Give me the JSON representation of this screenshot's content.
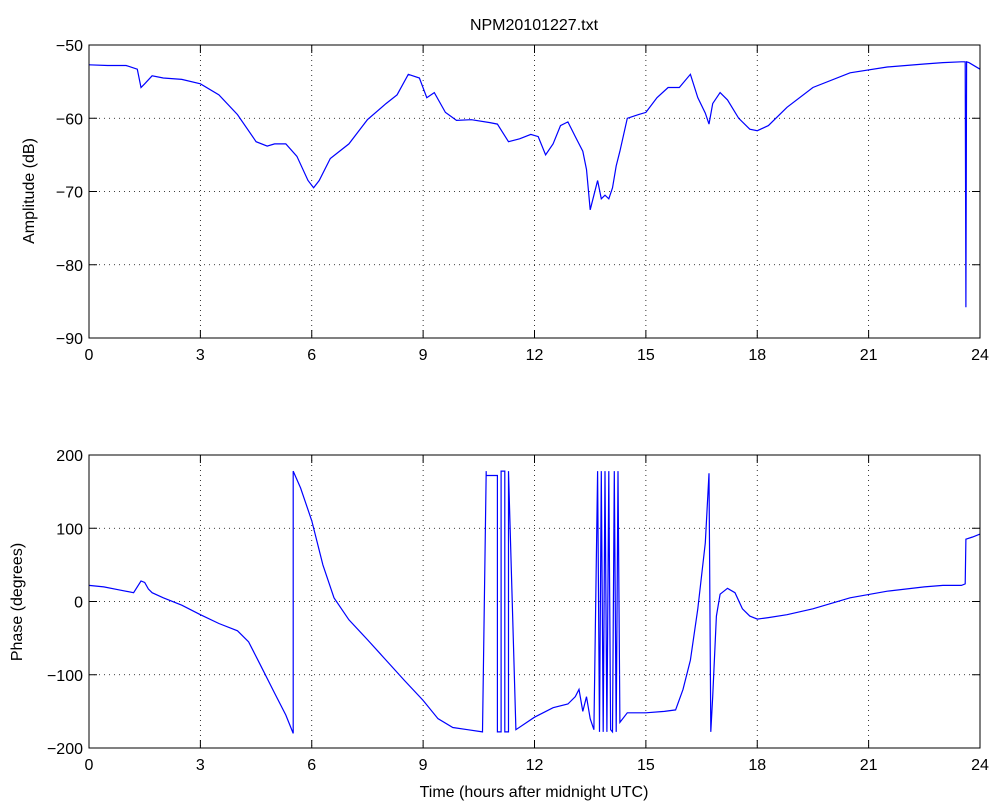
{
  "chart_data": [
    {
      "type": "line",
      "title": "NPM20101227.txt",
      "xlabel": "",
      "ylabel": "Amplitude (dB)",
      "xlim": [
        0,
        24
      ],
      "ylim": [
        -90,
        -50
      ],
      "xticks": [
        0,
        3,
        6,
        9,
        12,
        15,
        18,
        21,
        24
      ],
      "yticks": [
        -90,
        -80,
        -70,
        -60,
        -50
      ],
      "xtick_labels": [
        "0",
        "3",
        "6",
        "9",
        "12",
        "15",
        "18",
        "21",
        "24"
      ],
      "ytick_labels": [
        "−90",
        "−80",
        "−70",
        "−60",
        "−50"
      ],
      "grid": true,
      "line_color": "#0000ff",
      "series": [
        {
          "x": [
            0,
            0.5,
            1.0,
            1.3,
            1.4,
            1.5,
            1.7,
            2.0,
            2.5,
            3.0,
            3.5,
            4.0,
            4.5,
            4.8,
            5.0,
            5.3,
            5.6,
            5.9,
            6.05,
            6.2,
            6.5,
            7.0,
            7.5,
            8.0,
            8.3,
            8.6,
            8.9,
            9.1,
            9.3,
            9.6,
            9.9,
            10.3,
            10.8,
            11.0,
            11.3,
            11.6,
            11.9,
            12.1,
            12.3,
            12.5,
            12.7,
            12.9,
            13.1,
            13.3,
            13.4,
            13.5,
            13.6,
            13.7,
            13.8,
            13.9,
            14.0,
            14.1,
            14.2,
            14.3,
            14.5,
            14.8,
            15.0,
            15.3,
            15.6,
            15.9,
            16.2,
            16.4,
            16.6,
            16.7,
            16.8,
            17.0,
            17.2,
            17.5,
            17.8,
            18.0,
            18.3,
            18.8,
            19.5,
            20.5,
            21.5,
            22.5,
            23.0,
            23.5,
            23.6,
            23.62,
            23.64,
            23.7,
            24.0
          ],
          "y": [
            -52.7,
            -52.8,
            -52.8,
            -53.3,
            -55.8,
            -55.3,
            -54.2,
            -54.5,
            -54.7,
            -55.3,
            -56.8,
            -59.5,
            -63.2,
            -63.8,
            -63.5,
            -63.5,
            -65.2,
            -68.5,
            -69.5,
            -68.5,
            -65.5,
            -63.5,
            -60.2,
            -58.0,
            -56.8,
            -54.0,
            -54.5,
            -57.2,
            -56.5,
            -59.2,
            -60.3,
            -60.2,
            -60.6,
            -60.8,
            -63.2,
            -62.8,
            -62.2,
            -62.5,
            -65.0,
            -63.5,
            -61.0,
            -60.5,
            -62.5,
            -64.5,
            -67.0,
            -72.5,
            -70.5,
            -68.5,
            -71.0,
            -70.5,
            -71.0,
            -69.5,
            -66.5,
            -64.5,
            -60.0,
            -59.5,
            -59.2,
            -57.2,
            -55.8,
            -55.8,
            -54.0,
            -57.2,
            -59.3,
            -60.8,
            -58.0,
            -56.5,
            -57.5,
            -60.0,
            -61.5,
            -61.7,
            -61.0,
            -58.5,
            -55.8,
            -53.8,
            -53.0,
            -52.6,
            -52.4,
            -52.3,
            -52.3,
            -85.8,
            -52.3,
            -52.4,
            -53.3
          ]
        }
      ]
    },
    {
      "type": "line",
      "title": "",
      "xlabel": "Time (hours after midnight UTC)",
      "ylabel": "Phase (degrees)",
      "xlim": [
        0,
        24
      ],
      "ylim": [
        -200,
        200
      ],
      "xticks": [
        0,
        3,
        6,
        9,
        12,
        15,
        18,
        21,
        24
      ],
      "yticks": [
        -200,
        -100,
        0,
        100,
        200
      ],
      "xtick_labels": [
        "0",
        "3",
        "6",
        "9",
        "12",
        "15",
        "18",
        "21",
        "24"
      ],
      "ytick_labels": [
        "−200",
        "−100",
        "0",
        "100",
        "200"
      ],
      "grid": true,
      "line_color": "#0000ff",
      "series": [
        {
          "x": [
            0,
            0.4,
            0.8,
            1.2,
            1.4,
            1.5,
            1.6,
            1.7,
            2.0,
            2.5,
            3.0,
            3.5,
            4.0,
            4.3,
            4.6,
            5.0,
            5.3,
            5.5,
            5.5,
            5.7,
            6.0,
            6.3,
            6.6,
            7.0,
            7.5,
            8.0,
            8.5,
            9.0,
            9.4,
            9.8,
            10.2,
            10.6,
            10.7,
            10.7,
            11.0,
            11.0,
            11.1,
            11.1,
            11.2,
            11.2,
            11.3,
            11.3,
            11.5,
            12.0,
            12.5,
            12.9,
            13.1,
            13.2,
            13.3,
            13.4,
            13.5,
            13.6,
            13.7,
            13.75,
            13.8,
            13.85,
            13.9,
            13.95,
            14.0,
            14.05,
            14.1,
            14.15,
            14.2,
            14.25,
            14.3,
            14.5,
            15.0,
            15.5,
            15.8,
            16.0,
            16.2,
            16.4,
            16.6,
            16.7,
            16.75,
            16.8,
            16.9,
            17.0,
            17.2,
            17.4,
            17.6,
            17.8,
            18.0,
            18.3,
            18.8,
            19.5,
            20.5,
            21.5,
            22.5,
            23.0,
            23.5,
            23.6,
            23.62,
            23.8,
            24.0
          ],
          "y": [
            22,
            20,
            16,
            12,
            28,
            26,
            17,
            12,
            5,
            -5,
            -18,
            -30,
            -40,
            -55,
            -85,
            -125,
            -155,
            -180,
            178,
            155,
            110,
            50,
            5,
            -25,
            -52,
            -80,
            -108,
            -135,
            -160,
            -172,
            -175,
            -178,
            178,
            172,
            172,
            -178,
            -178,
            178,
            178,
            -178,
            -178,
            178,
            -175,
            -158,
            -145,
            -140,
            -130,
            -120,
            -150,
            -130,
            -160,
            -175,
            178,
            -178,
            178,
            -178,
            178,
            -178,
            178,
            -175,
            -178,
            178,
            -178,
            178,
            -165,
            -152,
            -152,
            -150,
            -148,
            -120,
            -80,
            -10,
            80,
            175,
            -178,
            -130,
            -20,
            10,
            18,
            12,
            -10,
            -20,
            -24,
            -22,
            -18,
            -10,
            5,
            14,
            20,
            22,
            22,
            24,
            85,
            88,
            92
          ]
        }
      ]
    }
  ]
}
